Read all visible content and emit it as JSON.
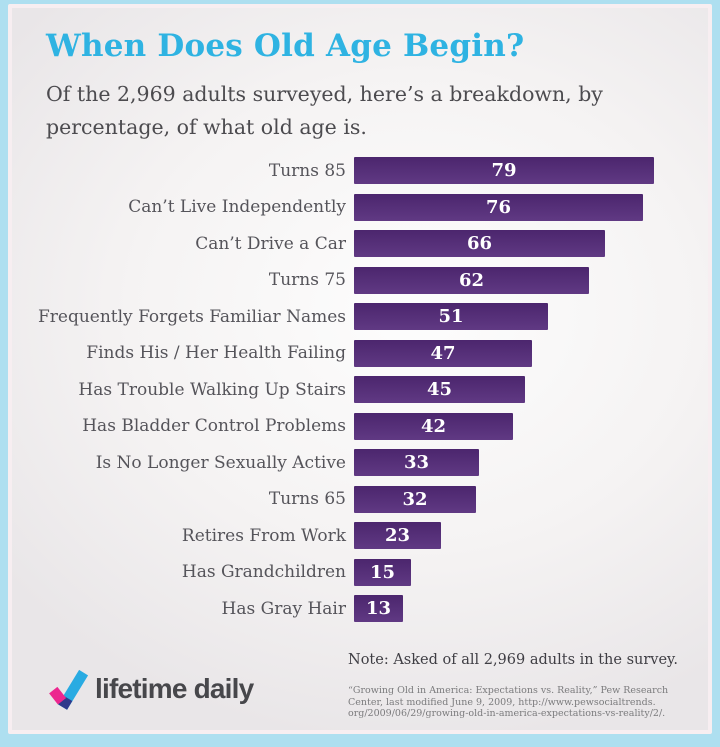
{
  "header": {
    "title": "When Does Old Age Begin?",
    "subtitle": "Of the 2,969 adults surveyed, here’s a breakdown, by percentage, of what old age is."
  },
  "chart_data": {
    "type": "bar",
    "orientation": "horizontal",
    "title": "When Does Old Age Begin?",
    "subtitle": "Of the 2,969 adults surveyed, here’s a breakdown, by percentage, of what old age is.",
    "categories": [
      "Turns 85",
      "Can’t Live Independently",
      "Can’t Drive a Car",
      "Turns 75",
      "Frequently Forgets Familiar Names",
      "Finds His / Her Health Failing",
      "Has Trouble Walking Up Stairs",
      "Has Bladder Control Problems",
      "Is No Longer Sexually Active",
      "Turns 65",
      "Retires From Work",
      "Has Grandchildren",
      "Has Gray Hair"
    ],
    "values": [
      79,
      76,
      66,
      62,
      51,
      47,
      45,
      42,
      33,
      32,
      23,
      15,
      13
    ],
    "xlim": [
      0,
      79
    ],
    "value_labels": "inside-center",
    "grid": false,
    "legend": "none",
    "bar_color": "#542a7a",
    "value_label_color": "#ffffff"
  },
  "footer": {
    "note": "Note: Asked of all 2,969 adults in the survey.",
    "source_lines": [
      "“Growing Old in America: Expectations vs. Reality,” Pew Research",
      "Center, last modified June 9, 2009, http://www.pewsocialtrends.",
      "org/2009/06/29/growing-old-in-america-expectations-vs-reality/2/."
    ],
    "logo_text": "lifetime daily"
  },
  "colors": {
    "title": "#2fb3e2",
    "bar": "#542a7a",
    "frame_border": "#aedff0",
    "card_inner_border": "#f7eef1",
    "label_text": "#55545a",
    "logo_check_cyan": "#29abe2",
    "logo_check_pink": "#ec268f",
    "logo_check_overlap": "#2f3a8c"
  }
}
